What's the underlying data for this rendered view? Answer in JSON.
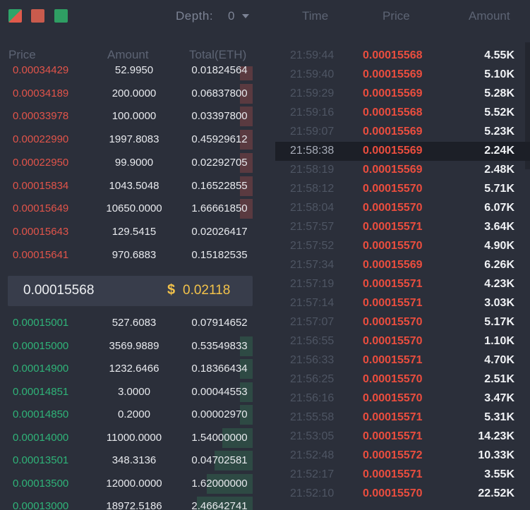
{
  "toolbar": {
    "depth_label": "Depth:",
    "depth_value": "0"
  },
  "orderbook": {
    "headers": {
      "price": "Price",
      "amount": "Amount",
      "total": "Total(ETH)"
    },
    "sell": [
      {
        "price": "0.00034429",
        "amount": "52.9950",
        "total": "0.01824564",
        "depth": 0.05
      },
      {
        "price": "0.00034189",
        "amount": "200.0000",
        "total": "0.06837800",
        "depth": 0.05
      },
      {
        "price": "0.00033978",
        "amount": "100.0000",
        "total": "0.03397800",
        "depth": 0.05
      },
      {
        "price": "0.00022990",
        "amount": "1997.8083",
        "total": "0.45929612",
        "depth": 0.05
      },
      {
        "price": "0.00022950",
        "amount": "99.9000",
        "total": "0.02292705",
        "depth": 0.05
      },
      {
        "price": "0.00015834",
        "amount": "1043.5048",
        "total": "0.16522855",
        "depth": 0.05
      },
      {
        "price": "0.00015649",
        "amount": "10650.0000",
        "total": "1.66661850",
        "depth": 0.05
      },
      {
        "price": "0.00015643",
        "amount": "129.5415",
        "total": "0.02026417",
        "depth": 0.0
      },
      {
        "price": "0.00015641",
        "amount": "970.6883",
        "total": "0.15182535",
        "depth": 0.0
      }
    ],
    "mid": {
      "price": "0.00015568",
      "dollar_sign": "$",
      "usd": "0.02118"
    },
    "buy": [
      {
        "price": "0.00015001",
        "amount": "527.6083",
        "total": "0.07914652",
        "depth": 0.0
      },
      {
        "price": "0.00015000",
        "amount": "3569.9889",
        "total": "0.53549833",
        "depth": 0.05
      },
      {
        "price": "0.00014900",
        "amount": "1232.6466",
        "total": "0.18366434",
        "depth": 0.05
      },
      {
        "price": "0.00014851",
        "amount": "3.0000",
        "total": "0.00044553",
        "depth": 0.05
      },
      {
        "price": "0.00014850",
        "amount": "0.2000",
        "total": "0.00002970",
        "depth": 0.05
      },
      {
        "price": "0.00014000",
        "amount": "11000.0000",
        "total": "1.54000000",
        "depth": 0.12
      },
      {
        "price": "0.00013501",
        "amount": "348.3136",
        "total": "0.04702581",
        "depth": 0.15
      },
      {
        "price": "0.00013500",
        "amount": "12000.0000",
        "total": "1.62000000",
        "depth": 0.18
      },
      {
        "price": "0.00013000",
        "amount": "18972.5186",
        "total": "2.46642741",
        "depth": 0.22
      }
    ]
  },
  "trades": {
    "headers": {
      "time": "Time",
      "price": "Price",
      "amount": "Amount"
    },
    "highlight_index": 5,
    "rows": [
      {
        "time": "21:59:44",
        "price": "0.00015568",
        "amount": "4.55K"
      },
      {
        "time": "21:59:40",
        "price": "0.00015569",
        "amount": "5.10K"
      },
      {
        "time": "21:59:29",
        "price": "0.00015569",
        "amount": "5.28K"
      },
      {
        "time": "21:59:16",
        "price": "0.00015568",
        "amount": "5.52K"
      },
      {
        "time": "21:59:07",
        "price": "0.00015569",
        "amount": "5.23K"
      },
      {
        "time": "21:58:38",
        "price": "0.00015569",
        "amount": "2.24K"
      },
      {
        "time": "21:58:19",
        "price": "0.00015569",
        "amount": "2.48K"
      },
      {
        "time": "21:58:12",
        "price": "0.00015570",
        "amount": "5.71K"
      },
      {
        "time": "21:58:04",
        "price": "0.00015570",
        "amount": "6.07K"
      },
      {
        "time": "21:57:57",
        "price": "0.00015571",
        "amount": "3.64K"
      },
      {
        "time": "21:57:52",
        "price": "0.00015570",
        "amount": "4.90K"
      },
      {
        "time": "21:57:34",
        "price": "0.00015569",
        "amount": "6.26K"
      },
      {
        "time": "21:57:19",
        "price": "0.00015571",
        "amount": "4.23K"
      },
      {
        "time": "21:57:14",
        "price": "0.00015571",
        "amount": "3.03K"
      },
      {
        "time": "21:57:07",
        "price": "0.00015570",
        "amount": "5.17K"
      },
      {
        "time": "21:56:55",
        "price": "0.00015570",
        "amount": "1.10K"
      },
      {
        "time": "21:56:33",
        "price": "0.00015571",
        "amount": "4.70K"
      },
      {
        "time": "21:56:25",
        "price": "0.00015570",
        "amount": "2.51K"
      },
      {
        "time": "21:56:16",
        "price": "0.00015570",
        "amount": "3.47K"
      },
      {
        "time": "21:55:58",
        "price": "0.00015571",
        "amount": "5.31K"
      },
      {
        "time": "21:53:05",
        "price": "0.00015571",
        "amount": "14.23K"
      },
      {
        "time": "21:52:48",
        "price": "0.00015572",
        "amount": "10.33K"
      },
      {
        "time": "21:52:17",
        "price": "0.00015571",
        "amount": "3.55K"
      },
      {
        "time": "21:52:10",
        "price": "0.00015570",
        "amount": "22.52K"
      }
    ]
  },
  "icons": {
    "view_both": "split-view-icon",
    "view_sell": "sell-view-icon",
    "view_buy": "buy-view-icon",
    "caret": "chevron-down-icon"
  },
  "colors": {
    "background": "#2b2f3a",
    "sell": "#e1544a",
    "buy": "#2fb378",
    "usd": "#f2c24a",
    "trade_price": "#ea4d3e"
  }
}
